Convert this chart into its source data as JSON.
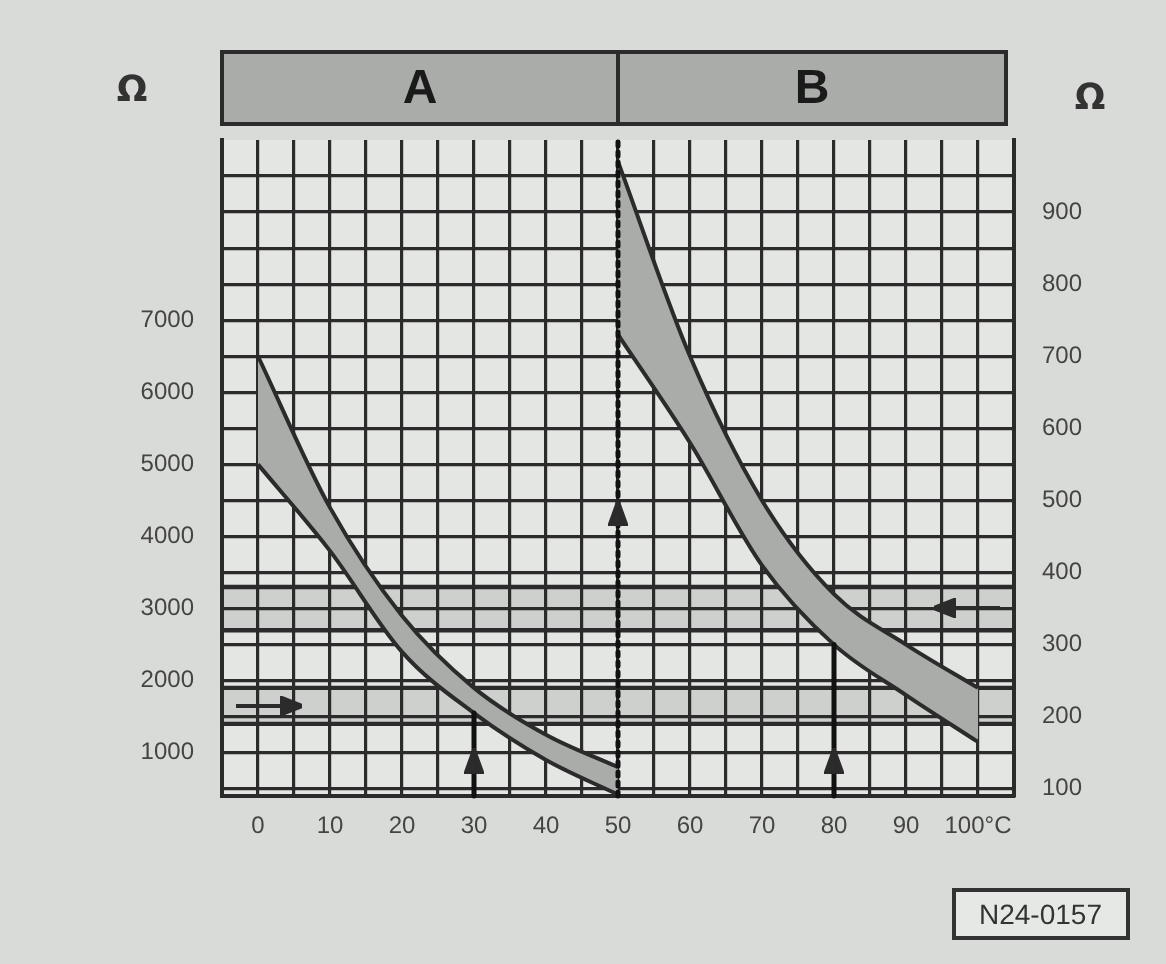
{
  "chart_data": {
    "type": "area",
    "xlim": [
      -5,
      105
    ],
    "ylim": [
      400,
      9500
    ],
    "y2lim": [
      90,
      1000
    ],
    "xticks": [
      0,
      {
        "value": 5,
        "label": null
      },
      10,
      {
        "value": 15,
        "label": null
      },
      20,
      {
        "value": 25,
        "label": null
      },
      30,
      {
        "value": 35,
        "label": null
      },
      40,
      {
        "value": 45,
        "label": null
      },
      50,
      {
        "value": 55,
        "label": null
      },
      60,
      {
        "value": 65,
        "label": null
      },
      70,
      {
        "value": 75,
        "label": null
      },
      80,
      {
        "value": 85,
        "label": null
      },
      90,
      {
        "value": 95,
        "label": null
      },
      {
        "value": 100,
        "label": "100°C"
      }
    ],
    "yticks": [
      {
        "value": 500,
        "label": null
      },
      1000,
      {
        "value": 1500,
        "label": null
      },
      2000,
      {
        "value": 2500,
        "label": null
      },
      3000,
      {
        "value": 3500,
        "label": null
      },
      4000,
      {
        "value": 4500,
        "label": null
      },
      5000,
      {
        "value": 5500,
        "label": null
      },
      6000,
      {
        "value": 6500,
        "label": null
      },
      7000,
      {
        "value": 7500,
        "label": null
      },
      {
        "value": 8000,
        "label": null
      },
      {
        "value": 8500,
        "label": null
      },
      {
        "value": 9000,
        "label": null
      }
    ],
    "y2ticks": [
      100,
      200,
      300,
      400,
      500,
      600,
      700,
      800,
      900
    ],
    "ylabel": "Ω",
    "y2label": "Ω",
    "grid": true,
    "legend": false,
    "series": [
      {
        "type": "line",
        "color": "#2b2b2b",
        "x": [
          0,
          10,
          20,
          30,
          40,
          50
        ],
        "values": [
          5000,
          3800,
          2400,
          1550,
          900,
          420
        ]
      },
      {
        "name": "A",
        "color": "#a9aca9",
        "x": [
          0,
          10,
          20,
          30,
          40,
          50
        ],
        "values": [
          6500,
          4400,
          2900,
          1900,
          1250,
          800
        ]
      },
      {
        "type": "line",
        "axis": "y2",
        "color": "#2b2b2b",
        "x": [
          50,
          60,
          70,
          80,
          90,
          100
        ],
        "values": [
          730,
          580,
          410,
          300,
          230,
          165
        ]
      },
      {
        "name": "B",
        "axis": "y2",
        "color": "#a9aca9",
        "x": [
          50,
          60,
          70,
          80,
          90,
          100
        ],
        "values": [
          970,
          700,
          500,
          370,
          300,
          240
        ]
      }
    ],
    "ref_lines": [
      {
        "axis": "x",
        "value": 30,
        "line_style": "solid",
        "color": "#111111"
      },
      {
        "axis": "x",
        "value": 50,
        "line_style": "dotted",
        "color": "#111111"
      },
      {
        "axis": "x",
        "value": 80,
        "line_style": "solid",
        "color": "#111111"
      }
    ],
    "bands": [
      {
        "axis": "y",
        "from": 1400,
        "to": 1900,
        "color": "#cdd0cd"
      },
      {
        "axis": "y2",
        "from": 320,
        "to": 380,
        "color": "#cdd0cd"
      }
    ],
    "annotations": [
      "N24-0157"
    ]
  }
}
